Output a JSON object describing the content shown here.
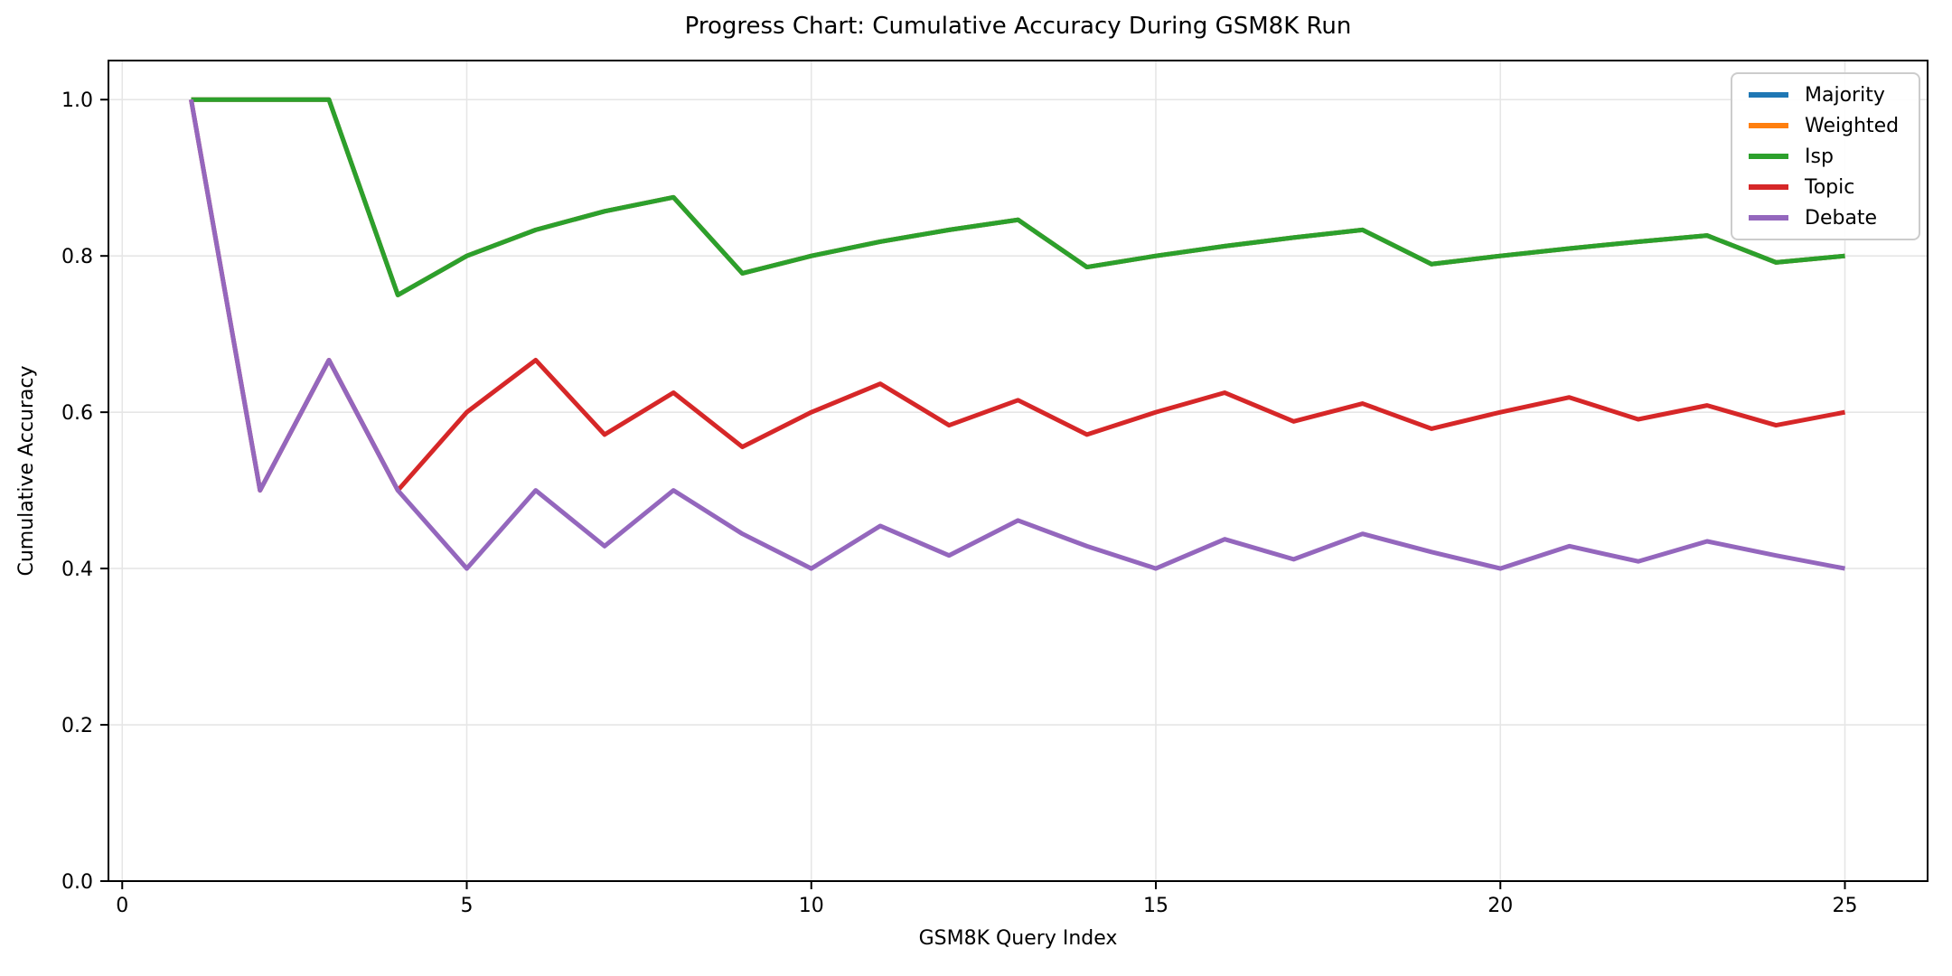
{
  "figure": {
    "title": "Progress Chart: Cumulative Accuracy During GSM8K Run",
    "xlabel": "GSM8K Query Index",
    "ylabel": "Cumulative Accuracy"
  },
  "chart_data": {
    "type": "line",
    "title": "Progress Chart: Cumulative Accuracy During GSM8K Run",
    "xlabel": "GSM8K Query Index",
    "ylabel": "Cumulative Accuracy",
    "xlim": [
      -0.2,
      26.2
    ],
    "ylim": [
      0,
      1.05
    ],
    "grid": true,
    "legend_position": "upper right",
    "x_ticks": [
      0,
      5,
      10,
      15,
      20,
      25
    ],
    "x_tick_labels": [
      "0",
      "5",
      "10",
      "15",
      "20",
      "25"
    ],
    "y_ticks": [
      0.0,
      0.2,
      0.4,
      0.6,
      0.8,
      1.0
    ],
    "y_tick_labels": [
      "0.0",
      "0.2",
      "0.4",
      "0.6",
      "0.8",
      "1.0"
    ],
    "x": [
      1,
      2,
      3,
      4,
      5,
      6,
      7,
      8,
      9,
      10,
      11,
      12,
      13,
      14,
      15,
      16,
      17,
      18,
      19,
      20,
      21,
      22,
      23,
      24,
      25
    ],
    "series": [
      {
        "name": "Majority",
        "color": "#1f77b4",
        "values": [
          1.0,
          1.0,
          1.0,
          0.75,
          0.8,
          0.8333,
          0.8571,
          0.875,
          0.7778,
          0.8,
          0.8182,
          0.8333,
          0.8462,
          0.7857,
          0.8,
          0.8125,
          0.8235,
          0.8333,
          0.7895,
          0.8,
          0.8095,
          0.8182,
          0.8261,
          0.7917,
          0.8
        ]
      },
      {
        "name": "Weighted",
        "color": "#ff7f0e",
        "values": [
          1.0,
          1.0,
          1.0,
          0.75,
          0.8,
          0.8333,
          0.8571,
          0.875,
          0.7778,
          0.8,
          0.8182,
          0.8333,
          0.8462,
          0.7857,
          0.8,
          0.8125,
          0.8235,
          0.8333,
          0.7895,
          0.8,
          0.8095,
          0.8182,
          0.8261,
          0.7917,
          0.8
        ]
      },
      {
        "name": "Isp",
        "color": "#2ca02c",
        "values": [
          1.0,
          1.0,
          1.0,
          0.75,
          0.8,
          0.8333,
          0.8571,
          0.875,
          0.7778,
          0.8,
          0.8182,
          0.8333,
          0.8462,
          0.7857,
          0.8,
          0.8125,
          0.8235,
          0.8333,
          0.7895,
          0.8,
          0.8095,
          0.8182,
          0.8261,
          0.7917,
          0.8
        ]
      },
      {
        "name": "Topic",
        "color": "#d62728",
        "values": [
          1.0,
          0.5,
          0.6667,
          0.5,
          0.6,
          0.6667,
          0.5714,
          0.625,
          0.5556,
          0.6,
          0.6364,
          0.5833,
          0.6154,
          0.5714,
          0.6,
          0.625,
          0.5882,
          0.6111,
          0.5789,
          0.6,
          0.619,
          0.5909,
          0.6087,
          0.5833,
          0.6
        ]
      },
      {
        "name": "Debate",
        "color": "#9467bd",
        "values": [
          1.0,
          0.5,
          0.6667,
          0.5,
          0.4,
          0.5,
          0.4286,
          0.5,
          0.4444,
          0.4,
          0.4545,
          0.4167,
          0.4615,
          0.4286,
          0.4,
          0.4375,
          0.4118,
          0.4444,
          0.4211,
          0.4,
          0.4286,
          0.4091,
          0.4348,
          0.4167,
          0.4
        ]
      }
    ],
    "style": {
      "grid_color": "#e6e6e6",
      "spine_color": "#000000",
      "background": "#ffffff"
    }
  }
}
